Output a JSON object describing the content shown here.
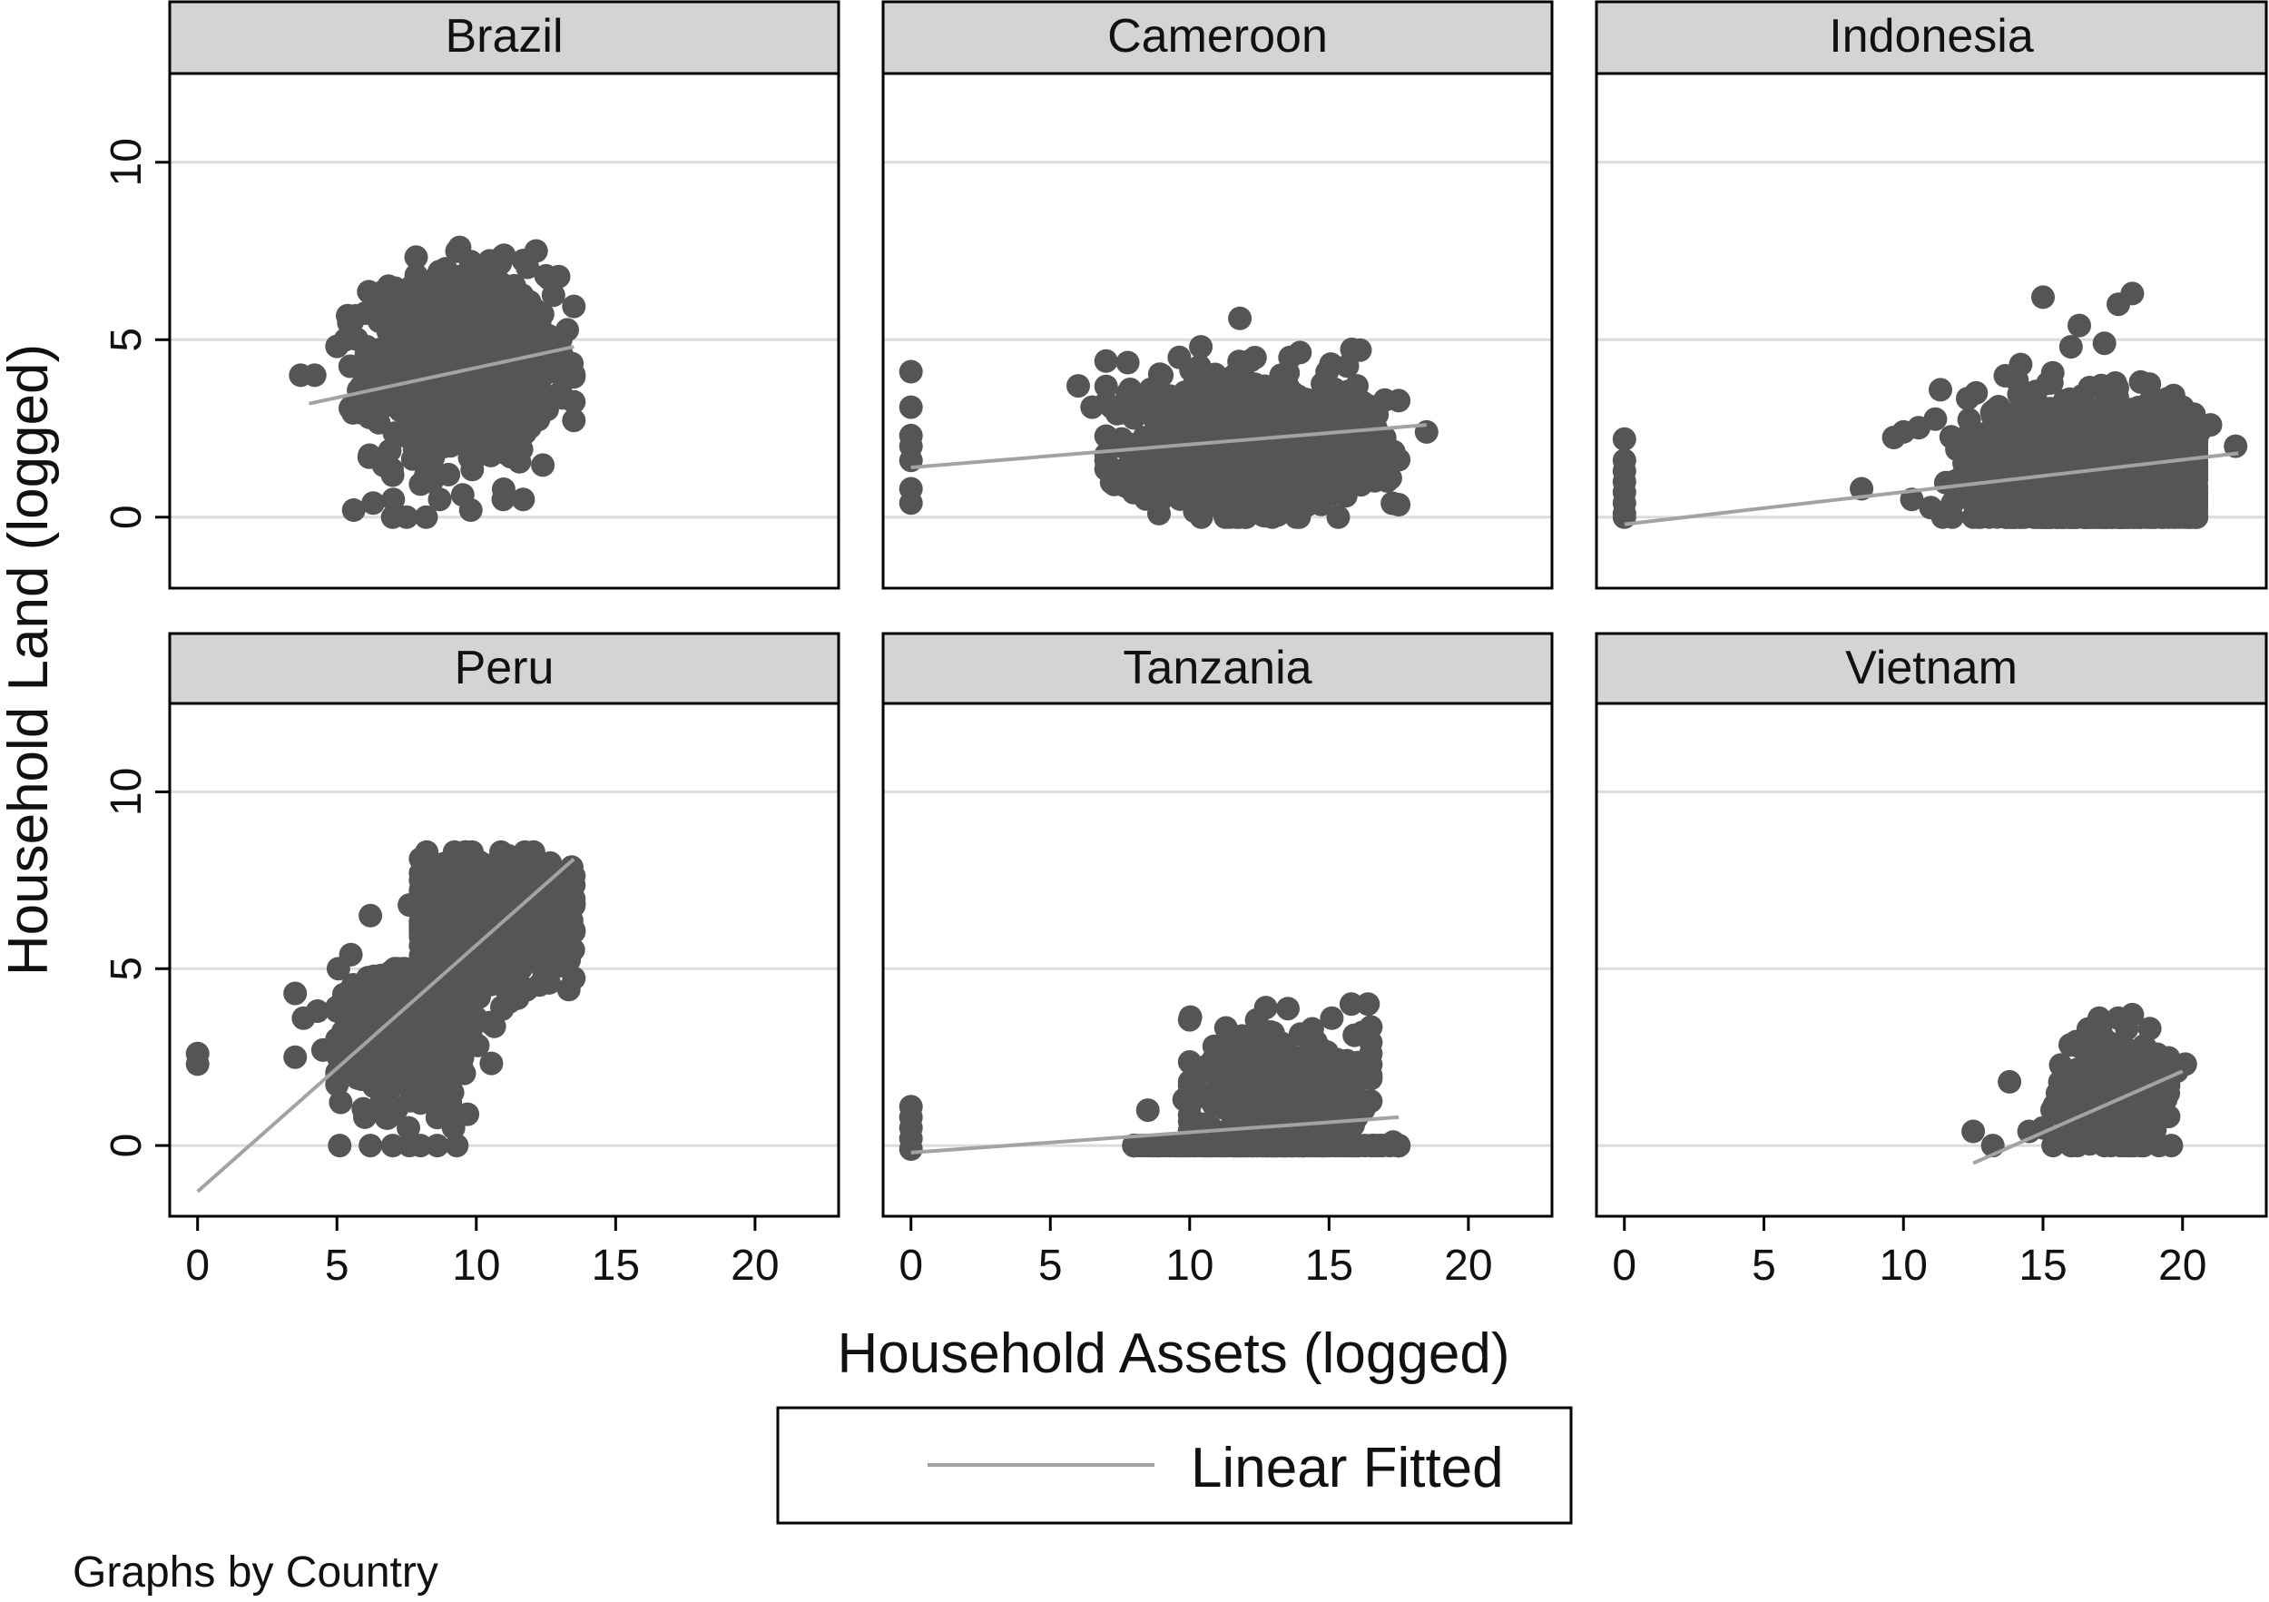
{
  "chart_data": {
    "type": "scatter",
    "xlabel": "Household Assets (logged)",
    "ylabel": "Household Land (logged)",
    "xlim": [
      -1,
      23
    ],
    "ylim": [
      -2,
      12.5
    ],
    "xticks": [
      0,
      5,
      10,
      15,
      20
    ],
    "yticks": [
      0,
      5,
      10
    ],
    "grid": "horizontal",
    "legend": {
      "placement": "bottom",
      "entries": [
        "Linear Fitted"
      ]
    },
    "note": "Graphs by Country",
    "colors": {
      "points": "#555555",
      "fit_line": "#a3a3a3",
      "strip": "#d4d4d4",
      "grid": "#dcdcdc"
    },
    "panels": [
      {
        "name": "Brazil",
        "fit": {
          "x": [
            4,
            13.5
          ],
          "y": [
            3.2,
            4.8
          ]
        },
        "clusters": [
          {
            "x": [
              5,
              13.5
            ],
            "y": [
              0.5,
              7.5
            ],
            "n": 900,
            "center": [
              9.5,
              4.2
            ],
            "spread": [
              1.6,
              1.3
            ]
          }
        ],
        "points": [
          [
            3.7,
            4.0
          ],
          [
            4.2,
            4.0
          ],
          [
            5.3,
            5.0
          ],
          [
            9.4,
            7.6
          ],
          [
            9.8,
            7.2
          ],
          [
            8.6,
            6.8
          ],
          [
            8.9,
            7.0
          ],
          [
            12.5,
            6.8
          ],
          [
            5.6,
            0.2
          ],
          [
            7.0,
            0.0
          ],
          [
            7.5,
            0.0
          ],
          [
            8.2,
            0.0
          ],
          [
            9.8,
            0.2
          ],
          [
            6.3,
            0.4
          ],
          [
            9.0,
            1.2
          ],
          [
            12.8,
            4.1
          ],
          [
            10.7,
            6.6
          ],
          [
            7.4,
            2.3
          ]
        ]
      },
      {
        "name": "Cameroon",
        "fit": {
          "x": [
            0,
            18.5
          ],
          "y": [
            1.4,
            2.6
          ]
        },
        "clusters": [
          {
            "x": [
              7,
              17.5
            ],
            "y": [
              0,
              5
            ],
            "n": 1200,
            "center": [
              12,
              2.0
            ],
            "spread": [
              2.0,
              0.9
            ]
          }
        ],
        "points": [
          [
            0,
            4.1
          ],
          [
            0,
            3.1
          ],
          [
            0,
            2.3
          ],
          [
            0,
            2.0
          ],
          [
            0,
            1.6
          ],
          [
            0,
            0.8
          ],
          [
            0,
            0.4
          ],
          [
            6.0,
            3.7
          ],
          [
            6.5,
            3.1
          ],
          [
            8.6,
            3.6
          ],
          [
            9.0,
            4.0
          ],
          [
            10.4,
            4.8
          ],
          [
            11.8,
            5.6
          ],
          [
            18.5,
            2.4
          ],
          [
            17.2,
            1.1
          ],
          [
            17.0,
            3.3
          ],
          [
            15.6,
            0.6
          ],
          [
            8.9,
            0.1
          ],
          [
            12.0,
            0.0
          ],
          [
            13.6,
            4.5
          ],
          [
            16.0,
            3.7
          ]
        ]
      },
      {
        "name": "Indonesia",
        "fit": {
          "x": [
            0,
            22
          ],
          "y": [
            -0.2,
            1.8
          ]
        },
        "clusters": [
          {
            "x": [
              9,
              20.5
            ],
            "y": [
              0,
              4.5
            ],
            "n": 1400,
            "center": [
              16.5,
              1.2
            ],
            "spread": [
              2.0,
              1.0
            ]
          }
        ],
        "points": [
          [
            0,
            2.2
          ],
          [
            0,
            1.6
          ],
          [
            0,
            1.3
          ],
          [
            0,
            1.0
          ],
          [
            0,
            0.7
          ],
          [
            0,
            0.4
          ],
          [
            0,
            0.1
          ],
          [
            0,
            0.0
          ],
          [
            15.0,
            6.2
          ],
          [
            16.3,
            5.4
          ],
          [
            16.0,
            4.8
          ],
          [
            17.2,
            4.9
          ],
          [
            17.7,
            6.0
          ],
          [
            18.2,
            6.3
          ],
          [
            14.2,
            4.3
          ],
          [
            12.3,
            2.3
          ],
          [
            10.0,
            2.4
          ],
          [
            11.8,
            1.0
          ],
          [
            8.5,
            0.8
          ],
          [
            10.3,
            0.5
          ],
          [
            20.0,
            3.1
          ],
          [
            20.6,
            2.4
          ],
          [
            21.9,
            2.0
          ],
          [
            21.0,
            2.6
          ],
          [
            19.3,
            1.2
          ],
          [
            18.4,
            0.0
          ],
          [
            13.5,
            2.5
          ]
        ]
      },
      {
        "name": "Peru",
        "fit": {
          "x": [
            0,
            13.5
          ],
          "y": [
            -1.3,
            8.1
          ]
        },
        "clusters": [
          {
            "x": [
              8,
              13.5
            ],
            "y": [
              4,
              8.3
            ],
            "n": 900,
            "center": [
              10.5,
              6.4
            ],
            "spread": [
              1.3,
              0.8
            ]
          },
          {
            "x": [
              5,
              11
            ],
            "y": [
              0.5,
              5
            ],
            "n": 350,
            "center": [
              7.8,
              3.0
            ],
            "spread": [
              1.3,
              1.0
            ]
          }
        ],
        "points": [
          [
            0,
            2.6
          ],
          [
            0,
            2.3
          ],
          [
            3.5,
            4.3
          ],
          [
            3.8,
            3.6
          ],
          [
            4.3,
            3.8
          ],
          [
            3.5,
            2.5
          ],
          [
            4.5,
            2.7
          ],
          [
            5.6,
            4.1
          ],
          [
            6.2,
            4.2
          ],
          [
            7.0,
            4.2
          ],
          [
            6.4,
            3.9
          ],
          [
            5.3,
            2.0
          ],
          [
            5.1,
            0.0
          ],
          [
            6.2,
            0.0
          ],
          [
            7.0,
            0.0
          ],
          [
            7.6,
            0.0
          ],
          [
            8.0,
            0.0
          ],
          [
            8.6,
            0.0
          ],
          [
            9.3,
            0.0
          ],
          [
            6.0,
            0.8
          ],
          [
            8.0,
            1.2
          ],
          [
            9.6,
            8.3
          ],
          [
            6.2,
            6.5
          ],
          [
            5.5,
            5.4
          ],
          [
            7.6,
            6.8
          ],
          [
            13.4,
            7.0
          ],
          [
            11.8,
            4.4
          ],
          [
            9.8,
            4.0
          ],
          [
            10.0,
            3.6
          ]
        ]
      },
      {
        "name": "Tanzania",
        "fit": {
          "x": [
            0,
            17.5
          ],
          "y": [
            -0.2,
            0.8
          ]
        },
        "clusters": [
          {
            "x": [
              8,
              17.5
            ],
            "y": [
              0,
              0
            ],
            "n": 300,
            "center": [
              12.5,
              0
            ],
            "spread": [
              2.6,
              0
            ]
          },
          {
            "x": [
              10,
              16.5
            ],
            "y": [
              0.3,
              3.9
            ],
            "n": 220,
            "center": [
              13.0,
              1.6
            ],
            "spread": [
              2.0,
              0.9
            ]
          }
        ],
        "points": [
          [
            0,
            1.1
          ],
          [
            0,
            0.8
          ],
          [
            0,
            0.5
          ],
          [
            0,
            0.2
          ],
          [
            0,
            -0.1
          ],
          [
            15.8,
            4.0
          ],
          [
            16.4,
            4.0
          ],
          [
            15.1,
            3.6
          ],
          [
            16.2,
            3.2
          ],
          [
            16.5,
            2.6
          ],
          [
            16.0,
            2.2
          ],
          [
            15.6,
            1.2
          ],
          [
            8.5,
            1.0
          ],
          [
            9.8,
            1.3
          ],
          [
            11.5,
            2.9
          ],
          [
            12.4,
            3.0
          ],
          [
            13.0,
            2.8
          ],
          [
            14.4,
            3.3
          ],
          [
            16.0,
            0.8
          ],
          [
            17.3,
            0.1
          ],
          [
            8.2,
            0.0
          ],
          [
            17.5,
            0.0
          ]
        ]
      },
      {
        "name": "Vietnam",
        "fit": {
          "x": [
            12.5,
            20
          ],
          "y": [
            -0.5,
            2.1
          ]
        },
        "clusters": [
          {
            "x": [
              15,
              19.5
            ],
            "y": [
              0,
              3.6
            ],
            "n": 260,
            "center": [
              17.5,
              1.4
            ],
            "spread": [
              1.0,
              0.9
            ]
          }
        ],
        "points": [
          [
            12.5,
            0.4
          ],
          [
            13.2,
            0.0
          ],
          [
            13.8,
            1.8
          ],
          [
            14.5,
            0.4
          ],
          [
            15.0,
            0.5
          ],
          [
            15.5,
            0.2
          ],
          [
            18.2,
            3.7
          ],
          [
            18.0,
            3.3
          ],
          [
            19.6,
            0.0
          ],
          [
            20.1,
            2.3
          ],
          [
            19.8,
            2.1
          ],
          [
            16.3,
            2.8
          ],
          [
            17.0,
            2.2
          ],
          [
            16.0,
            0.0
          ]
        ]
      }
    ]
  }
}
